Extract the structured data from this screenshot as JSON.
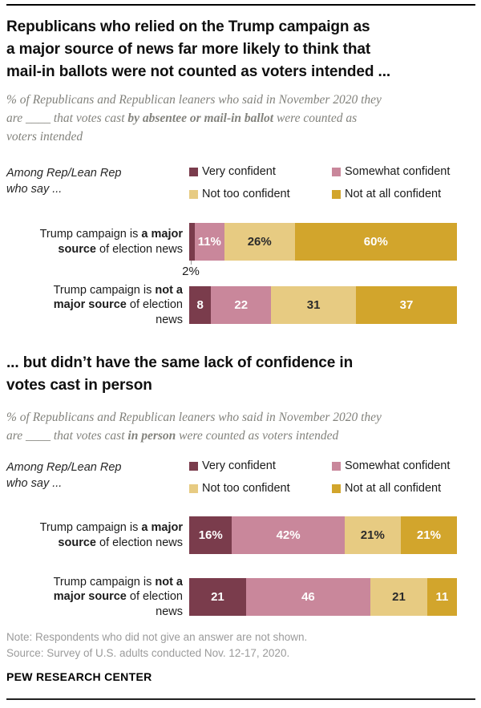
{
  "chart_data": [
    {
      "type": "bar",
      "stacked": true,
      "orientation": "horizontal",
      "title": "Republicans who relied on the Trump campaign as\na major source of news far more likely to think that\nmail-in ballots were not counted as voters intended ...",
      "subtitle": {
        "pre": "% of Republicans and Republican leaners who said in November 2020 they\nare ____ that votes cast ",
        "bold": "by absentee or mail-in ballot",
        "post": " were counted as\nvoters intended"
      },
      "group_label": "Among Rep/Lean Rep\nwho say ...",
      "legend_position": "top-right",
      "axis": {
        "unit": "%",
        "range": [
          0,
          100
        ],
        "grid": false
      },
      "series": [
        {
          "name": "Very confident",
          "color": "#7a3c4c",
          "text_color": "#ffffff",
          "values": [
            2,
            8
          ]
        },
        {
          "name": "Somewhat confident",
          "color": "#c9879b",
          "text_color": "#ffffff",
          "values": [
            11,
            22
          ]
        },
        {
          "name": "Not too confident",
          "color": "#e7cb82",
          "text_color": "#2b2b2b",
          "values": [
            26,
            31
          ]
        },
        {
          "name": "Not at all confident",
          "color": "#d2a52c",
          "text_color": "#ffffff",
          "values": [
            60,
            37
          ]
        }
      ],
      "rows": [
        {
          "label": {
            "pre": "Trump campaign is ",
            "bold": "a major\nsource",
            "post": " of election news"
          },
          "segments": [
            {
              "value": 2,
              "label": "2%",
              "outside": true
            },
            {
              "value": 11,
              "label": "11%"
            },
            {
              "value": 26,
              "label": "26%"
            },
            {
              "value": 60,
              "label": "60%"
            }
          ]
        },
        {
          "label": {
            "pre": "Trump campaign is ",
            "bold": "not a\nmajor source",
            "post": " of election\nnews"
          },
          "segments": [
            {
              "value": 8,
              "label": "8"
            },
            {
              "value": 22,
              "label": "22"
            },
            {
              "value": 31,
              "label": "31"
            },
            {
              "value": 37,
              "label": "37"
            }
          ]
        }
      ]
    },
    {
      "type": "bar",
      "stacked": true,
      "orientation": "horizontal",
      "title": "... but didn’t have the same lack of confidence in\nvotes cast in person",
      "subtitle": {
        "pre": "% of Republicans and Republican leaners who said in November 2020 they\nare ____ that votes cast ",
        "bold": "in person",
        "post": " were counted as voters intended"
      },
      "group_label": "Among Rep/Lean Rep\nwho say ...",
      "legend_position": "top-right",
      "axis": {
        "unit": "%",
        "range": [
          0,
          100
        ],
        "grid": false
      },
      "series": [
        {
          "name": "Very confident",
          "color": "#7a3c4c",
          "text_color": "#ffffff",
          "values": [
            16,
            21
          ]
        },
        {
          "name": "Somewhat confident",
          "color": "#c9879b",
          "text_color": "#ffffff",
          "values": [
            42,
            46
          ]
        },
        {
          "name": "Not too confident",
          "color": "#e7cb82",
          "text_color": "#2b2b2b",
          "values": [
            21,
            21
          ]
        },
        {
          "name": "Not at all confident",
          "color": "#d2a52c",
          "text_color": "#ffffff",
          "values": [
            21,
            11
          ]
        }
      ],
      "rows": [
        {
          "label": {
            "pre": "Trump campaign is ",
            "bold": "a major\nsource",
            "post": " of election news"
          },
          "segments": [
            {
              "value": 16,
              "label": "16%"
            },
            {
              "value": 42,
              "label": "42%"
            },
            {
              "value": 21,
              "label": "21%"
            },
            {
              "value": 21,
              "label": "21%"
            }
          ]
        },
        {
          "label": {
            "pre": "Trump campaign is ",
            "bold": "not a\nmajor source",
            "post": " of election\nnews"
          },
          "segments": [
            {
              "value": 21,
              "label": "21"
            },
            {
              "value": 46,
              "label": "46"
            },
            {
              "value": 21,
              "label": "21"
            },
            {
              "value": 11,
              "label": "11"
            }
          ]
        }
      ]
    }
  ],
  "footer": {
    "note": "Note: Respondents who did not give an answer are not shown.",
    "source": "Source: Survey of U.S. adults conducted Nov. 12-17, 2020.",
    "brand": "PEW RESEARCH CENTER"
  }
}
